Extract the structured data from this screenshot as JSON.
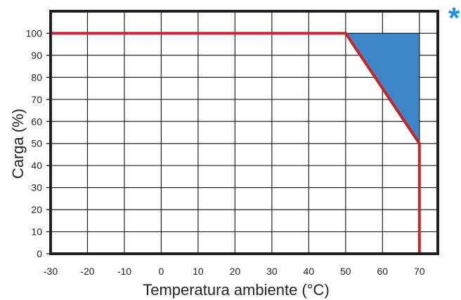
{
  "chart_data": {
    "type": "line",
    "title": "",
    "xlabel": "Temperatura ambiente (°C)",
    "ylabel": "Carga (%)",
    "xlim": [
      -30,
      75
    ],
    "ylim": [
      0,
      110
    ],
    "x_ticks": [
      -30,
      -20,
      -10,
      0,
      10,
      20,
      30,
      40,
      50,
      60,
      70
    ],
    "y_ticks": [
      0,
      10,
      20,
      30,
      40,
      50,
      60,
      70,
      80,
      90,
      100
    ],
    "grid": true,
    "series": [
      {
        "points": [
          [
            -30,
            100
          ],
          [
            50,
            100
          ],
          [
            70,
            50
          ],
          [
            70,
            0
          ]
        ],
        "color": "#c1272d"
      }
    ],
    "shaded_region": {
      "points": [
        [
          50,
          100
        ],
        [
          70,
          100
        ],
        [
          70,
          50
        ]
      ],
      "color": "#3f86c8"
    },
    "annotation": {
      "text": "*",
      "color": "#1e90e0"
    },
    "colors": {
      "frame": "#231f20",
      "grid": "#231f20",
      "text": "#231f20"
    }
  }
}
